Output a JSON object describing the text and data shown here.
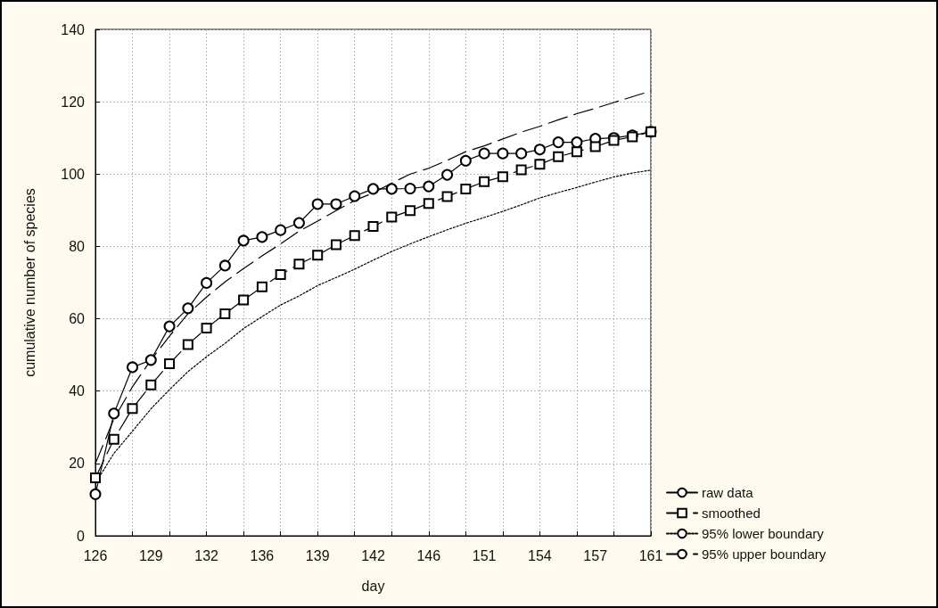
{
  "chart_data": {
    "type": "line",
    "xlabel": "day",
    "ylabel": "cumulative number of species",
    "categories": [
      "126",
      null,
      null,
      "129",
      null,
      null,
      "132",
      null,
      null,
      "136",
      null,
      null,
      "139",
      null,
      null,
      "142",
      null,
      null,
      "146",
      null,
      null,
      "151",
      null,
      null,
      "154",
      null,
      null,
      "157",
      null,
      null,
      "161"
    ],
    "series": [
      {
        "name": "raw data",
        "color": "#000000",
        "marker": "circle",
        "line_style": "solid",
        "values": [
          11.5,
          33.8,
          46.6,
          48.6,
          57.9,
          62.9,
          69.9,
          74.7,
          81.6,
          82.6,
          84.5,
          86.5,
          91.7,
          91.7,
          93.9,
          95.9,
          95.9,
          96,
          96.6,
          99.8,
          103.7,
          105.7,
          105.7,
          105.7,
          106.8,
          108.8,
          108.8,
          109.8,
          110,
          110.7,
          111.7
        ]
      },
      {
        "name": "smoothed",
        "color": "#000000",
        "marker": "square",
        "line_style": "dashed",
        "values": [
          16,
          26.7,
          35.2,
          41.7,
          47.6,
          52.9,
          57.4,
          61.4,
          65.2,
          68.8,
          72.2,
          75.1,
          77.6,
          80.5,
          83,
          85.5,
          88.1,
          89.9,
          91.9,
          93.8,
          95.9,
          97.9,
          99.3,
          101.2,
          102.7,
          104.8,
          106.2,
          107.6,
          109.3,
          110.3,
          111.7
        ]
      },
      {
        "name": "95% lower boundary",
        "color": "#000000",
        "marker": "none",
        "line_style": "dotted",
        "values": [
          14.5,
          22.8,
          28.9,
          35.1,
          40.4,
          45.4,
          49.5,
          53.2,
          57.3,
          60.6,
          63.8,
          66.3,
          69.2,
          71.4,
          73.7,
          76.2,
          78.6,
          80.7,
          82.7,
          84.6,
          86.4,
          88,
          89.7,
          91.5,
          93.4,
          94.9,
          96.3,
          97.8,
          99.2,
          100.3,
          101.1
        ]
      },
      {
        "name": "95% upper boundary",
        "color": "#000000",
        "marker": "none",
        "line_style": "dashed",
        "values": [
          20,
          32.3,
          41.2,
          48.6,
          55.2,
          61.4,
          66,
          70.2,
          73.9,
          77.4,
          80.7,
          84.2,
          87,
          89.9,
          92.7,
          94.8,
          97.5,
          100,
          101.6,
          103.8,
          106.2,
          107.8,
          109.7,
          111.6,
          113.2,
          115,
          116.7,
          118.2,
          119.8,
          121.4,
          123
        ]
      }
    ],
    "ylim": [
      0,
      140
    ],
    "yticks": [
      0,
      20,
      40,
      60,
      80,
      100,
      120,
      140
    ],
    "grid": true,
    "legend": "bottom right"
  }
}
